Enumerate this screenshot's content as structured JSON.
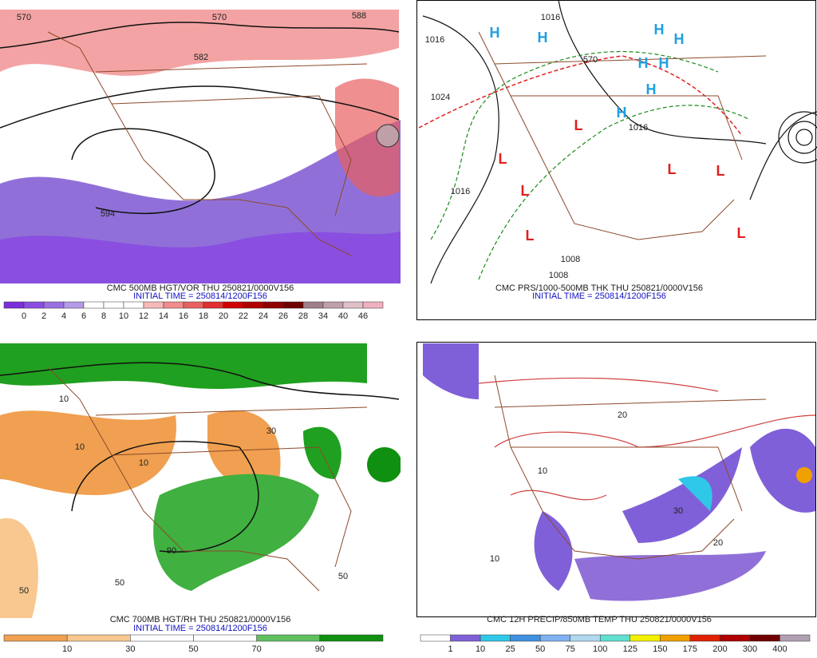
{
  "panels": [
    {
      "caption": "CMC 500MB HGT/VOR THU 250821/0000V156",
      "init": "INITIAL TIME = 250814/1200F156",
      "colorbar": {
        "labels": [
          "0",
          "2",
          "4",
          "6",
          "8",
          "10",
          "12",
          "14",
          "16",
          "18",
          "20",
          "22",
          "24",
          "26",
          "28",
          "34",
          "40",
          "46"
        ],
        "colors": [
          "#7b2fd8",
          "#8a4fe0",
          "#9a70e0",
          "#b49ae8",
          "#ffffff",
          "#ffffff",
          "#ffffff",
          "#f6b8b8",
          "#f08c8c",
          "#e86060",
          "#e03030",
          "#d00000",
          "#b00000",
          "#900000",
          "#700000",
          "#a08088",
          "#c0a0a8",
          "#e0c0c8",
          "#f0b0c0"
        ]
      },
      "map_labels": [
        "570",
        "570",
        "582",
        "594",
        "588"
      ]
    },
    {
      "caption": "CMC PRS/1000-500MB THK THU 250821/0000V156",
      "init": "INITIAL TIME = 250814/1200F156",
      "map_labels": [
        "1016",
        "1016",
        "1024",
        "1016",
        "1016",
        "1008",
        "1008",
        "570",
        "H",
        "H",
        "H",
        "H",
        "H",
        "H",
        "H",
        "H",
        "L",
        "L",
        "L",
        "L",
        "L",
        "L",
        "L"
      ]
    },
    {
      "caption": "CMC 700MB HGT/RH THU 250821/0000V156",
      "init": "INITIAL TIME = 250814/1200F156",
      "colorbar": {
        "labels": [
          "10",
          "30",
          "50",
          "70",
          "90"
        ],
        "colors": [
          "#f0a050",
          "#f8c890",
          "#ffffff",
          "#ffffff",
          "#60c060",
          "#109010"
        ]
      },
      "map_labels": [
        "10",
        "10",
        "50",
        "50",
        "30",
        "90",
        "50",
        "10"
      ]
    },
    {
      "caption": "CMC 12H PRECIP/850MB TEMP THU 250821/0000V156",
      "colorbar": {
        "labels": [
          "1",
          "10",
          "25",
          "50",
          "75",
          "100",
          "125",
          "150",
          "175",
          "200",
          "300",
          "400"
        ],
        "colors": [
          "#ffffff",
          "#8060d8",
          "#30c8e8",
          "#4090e0",
          "#80b0f0",
          "#b0d8f0",
          "#60e0d0",
          "#f0f000",
          "#f0a000",
          "#e02000",
          "#b00000",
          "#700000",
          "#b0a0b0"
        ]
      },
      "map_labels": [
        "10",
        "20",
        "30",
        "20",
        "10"
      ]
    }
  ]
}
